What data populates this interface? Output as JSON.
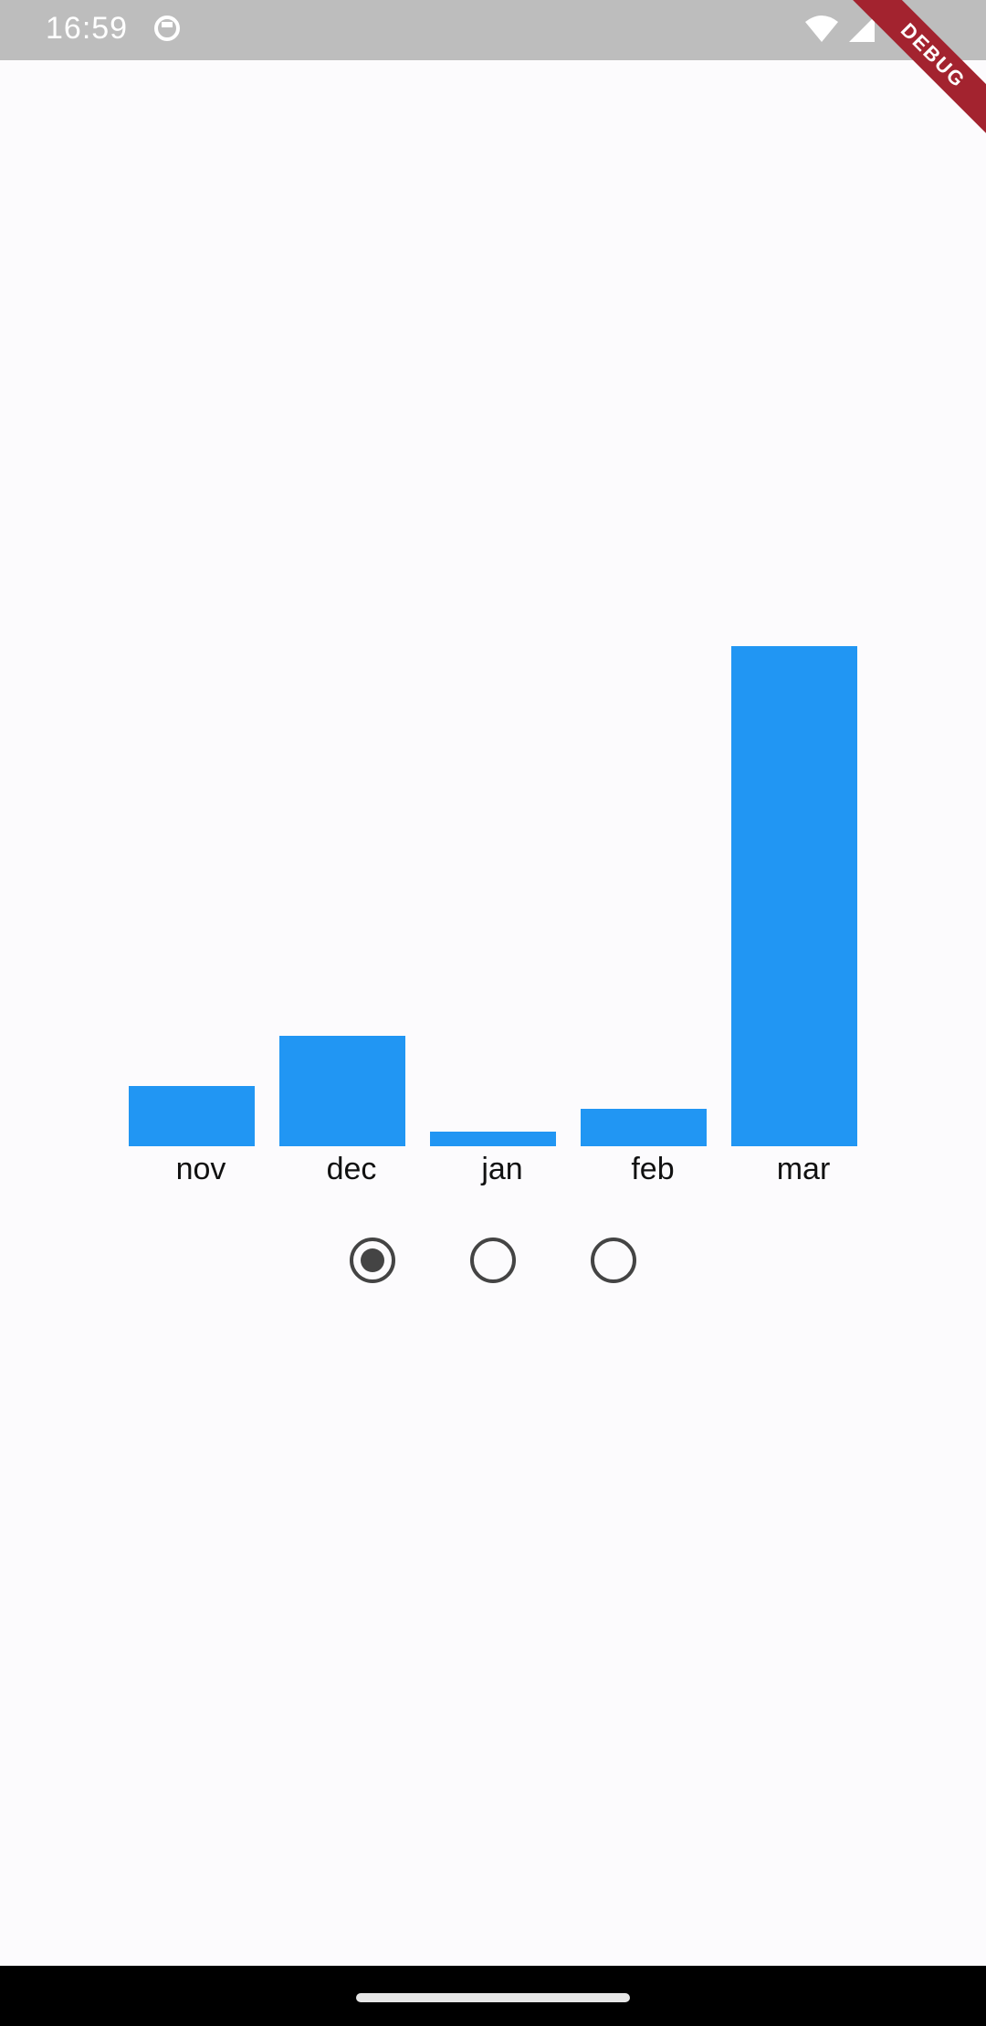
{
  "status_bar": {
    "time": "16:59",
    "icons": [
      "app-notification-icon",
      "wifi-icon",
      "cellular-signal-icon"
    ]
  },
  "debug_banner": {
    "label": "DEBUG",
    "color": "#a3232f"
  },
  "chart_data": {
    "type": "bar",
    "categories": [
      "nov",
      "dec",
      "jan",
      "feb",
      "mar"
    ],
    "values": [
      12,
      22,
      3,
      7.5,
      100
    ],
    "ylim": [
      0,
      100
    ],
    "grid": false,
    "legend": "none",
    "color": "#2196f3"
  },
  "radio_group": {
    "options": [
      {
        "selected": true
      },
      {
        "selected": false
      },
      {
        "selected": false
      }
    ]
  }
}
